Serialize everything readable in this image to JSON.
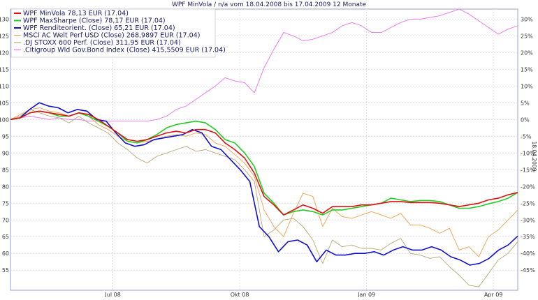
{
  "chart_data": {
    "type": "line",
    "title": "WPF MinVola / n/a vom 18.04.2008 bis 17.04.2009 12 Monate",
    "side_label": "18.04.2009",
    "x_tick_labels": [
      "Jul 08",
      "Okt 08",
      "Jan 09",
      "Apr 09"
    ],
    "y_left_ticks": [
      55,
      60,
      65,
      70,
      75,
      80,
      85,
      90,
      95,
      100,
      105,
      110,
      115,
      120,
      125,
      130
    ],
    "y_right_ticks": [
      "30%",
      "25%",
      "20%",
      "15%",
      "10%",
      "5%",
      "0%",
      "-5%",
      "-10%",
      "-15%",
      "-20%",
      "-25%",
      "-30%",
      "-35%",
      "-40%",
      "-45%"
    ],
    "ylim_left": [
      49,
      133
    ],
    "xlim": [
      0,
      52
    ],
    "x_unit": "weeks",
    "grid": true,
    "legend_position": "top-left",
    "series": [
      {
        "name": "WPF MinVola 78,13 EUR (17.04)",
        "color": "#e01010",
        "values": [
          100,
          100.5,
          102,
          102.5,
          102,
          101.5,
          101,
          102,
          101.5,
          100,
          98,
          96,
          94,
          93.5,
          94,
          95,
          96,
          96.5,
          96,
          97,
          97,
          96,
          93,
          91,
          88.5,
          84,
          77,
          74.5,
          71.5,
          73,
          74.5,
          73.5,
          72,
          74,
          74,
          74,
          74.5,
          74.5,
          75,
          75.5,
          75.5,
          75.2,
          75.2,
          75.2,
          75,
          74.5,
          74,
          74.5,
          75,
          76,
          76.5,
          77.5,
          78.2
        ]
      },
      {
        "name": "WPF MaxSharpe (Close) 78,17 EUR (17.04)",
        "color": "#22cc22",
        "values": [
          100,
          100.5,
          102,
          102.5,
          102,
          101,
          101,
          102,
          101,
          99.5,
          98,
          96,
          93.5,
          93,
          94,
          95.5,
          97.5,
          98.5,
          99,
          99.5,
          99,
          97,
          94,
          93,
          90,
          86,
          78,
          75,
          71.5,
          72.5,
          73,
          72.5,
          71.5,
          73,
          73,
          73.5,
          74,
          74.5,
          75,
          76.5,
          76,
          75.5,
          75.8,
          75.8,
          75.5,
          74.5,
          73.5,
          73.5,
          74,
          74.8,
          75.5,
          76.5,
          78.2
        ]
      },
      {
        "name": "WPF Renditeorient. (Close) 65,21 EUR (17.04)",
        "color": "#1010d0",
        "values": [
          100,
          100.5,
          103,
          105,
          104,
          103.5,
          102,
          103,
          102.5,
          100,
          99.5,
          96,
          93,
          92,
          92.5,
          94,
          94.5,
          95,
          95.5,
          97,
          96,
          92,
          91,
          88,
          85,
          81.5,
          68,
          65,
          60.5,
          63.5,
          64,
          62.5,
          57.5,
          61,
          59.5,
          59.5,
          60,
          60,
          60.5,
          59.5,
          61,
          62,
          61,
          61,
          62,
          61,
          59,
          58,
          56.5,
          57,
          58.5,
          61,
          62.5,
          65.2
        ]
      },
      {
        "name": "MSCI AC Welt Perf USD (Close) 268,9897 EUR (17.04)",
        "color": "#f0a050",
        "values": [
          100,
          101.5,
          103,
          103.5,
          102.5,
          102,
          101,
          102,
          101,
          98.5,
          97,
          95,
          93.5,
          93,
          93.5,
          94,
          95,
          95.5,
          95,
          96,
          95.5,
          93,
          92,
          89.5,
          87,
          83,
          73,
          68,
          65,
          72,
          78,
          77,
          68,
          73.5,
          71,
          70.5,
          71.5,
          72.5,
          71.5,
          70.5,
          72,
          68.5,
          68.5,
          67.5,
          66,
          67.5,
          61,
          62,
          59,
          65,
          67,
          70,
          73
        ]
      },
      {
        "name": ".DJ STOXX 600 Perf. (Close) 311,95 EUR (17.04)",
        "color": "#b8a878",
        "values": [
          100,
          101,
          103,
          102,
          101,
          100.5,
          99,
          101,
          99,
          97.5,
          96,
          93,
          91,
          88.5,
          87,
          89,
          90,
          91,
          92,
          90.5,
          91,
          90,
          89,
          88,
          85,
          81.5,
          65,
          67,
          70,
          70.5,
          68,
          64,
          57,
          64,
          62,
          62.5,
          61.5,
          61.5,
          61,
          63,
          64.5,
          60,
          59.5,
          58.5,
          59,
          56,
          53.5,
          50.5,
          50,
          54,
          58,
          60,
          63.5
        ]
      },
      {
        "name": ".Citigroup Wld Gov.Bond Index (Close) 415,5509 EUR (17.04)",
        "color": "#ee70ee",
        "values": [
          100,
          100.5,
          101,
          100.5,
          100,
          100.5,
          100,
          100,
          99.5,
          99.5,
          99.5,
          99.5,
          99.5,
          99.5,
          99.5,
          100,
          101,
          103,
          104,
          106,
          108,
          110,
          112.5,
          111.5,
          111,
          108,
          115.5,
          121,
          126,
          125,
          123.5,
          124,
          125,
          126,
          128,
          129,
          128,
          126,
          126,
          127.5,
          129,
          130,
          130,
          130.5,
          131,
          132,
          133,
          131.5,
          129.5,
          127.5,
          125.5,
          127,
          128
        ]
      }
    ]
  }
}
